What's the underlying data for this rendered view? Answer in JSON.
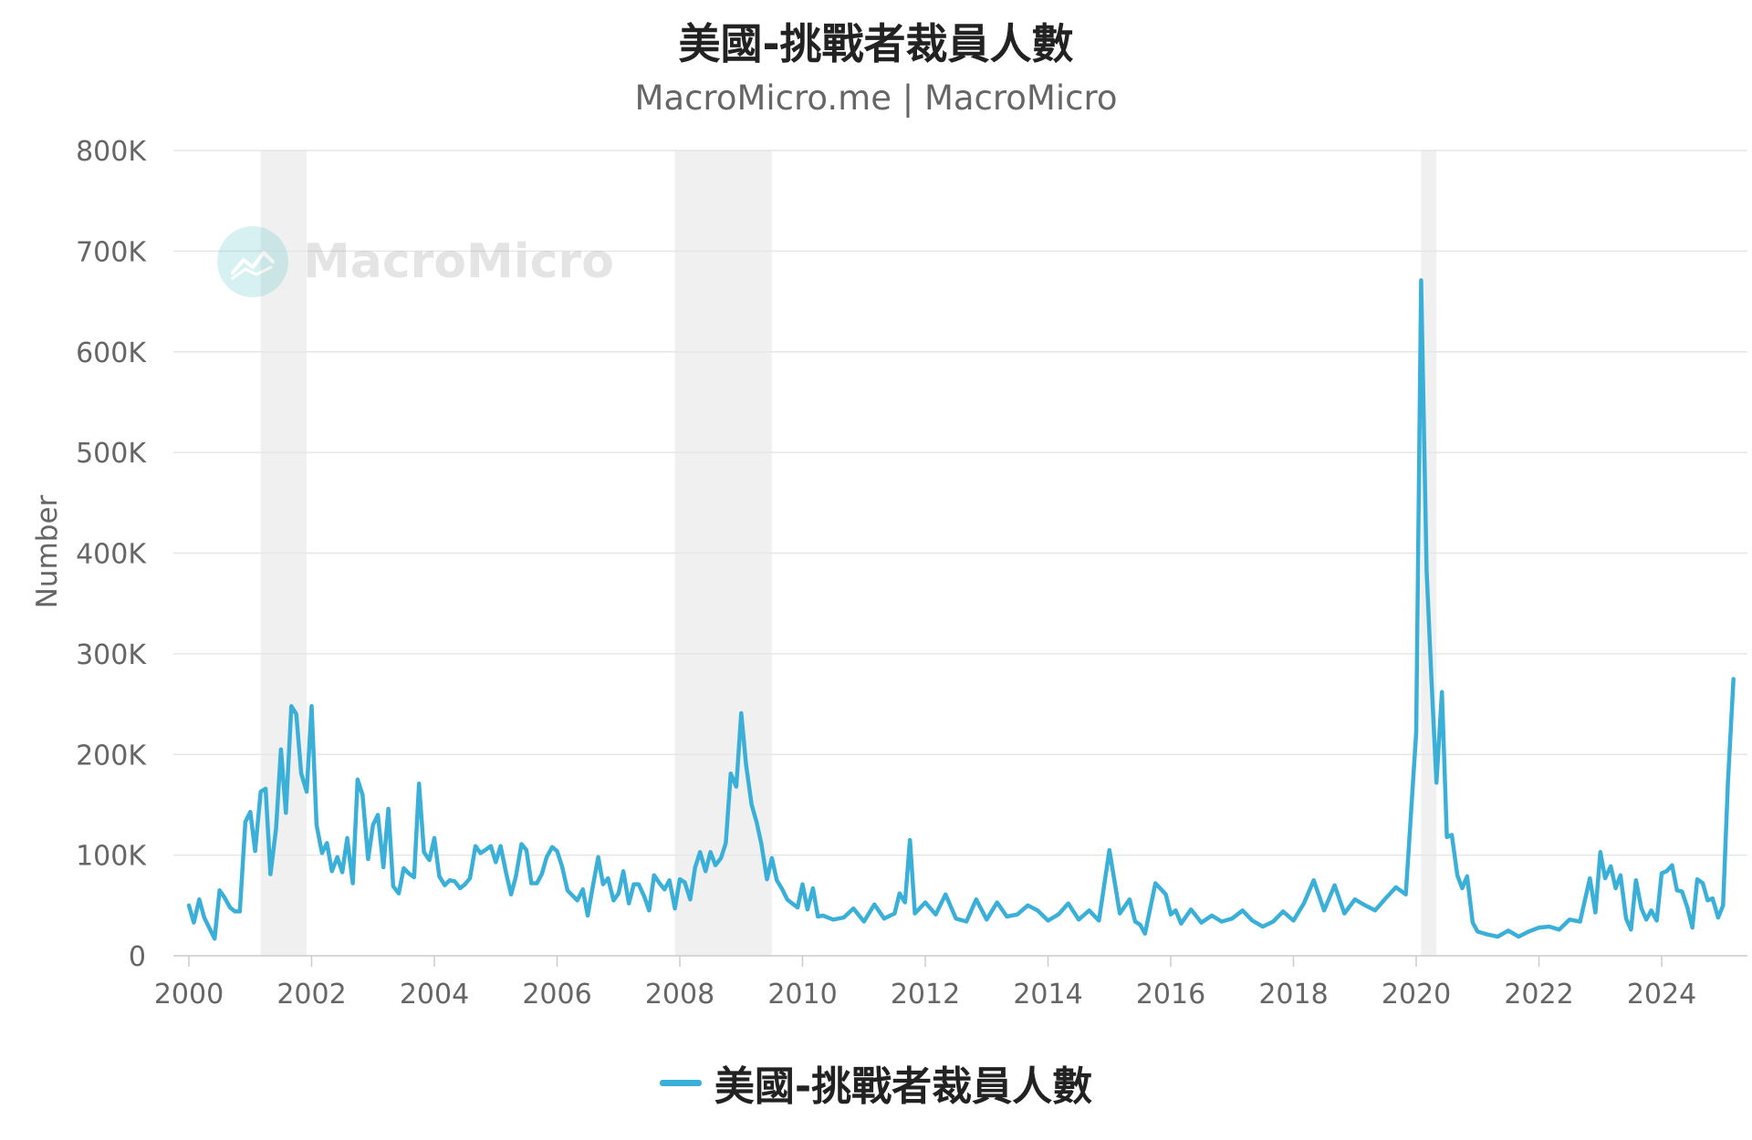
{
  "chart_data": {
    "type": "line",
    "title": "美國-挑戰者裁員人數",
    "subtitle": "MacroMicro.me | MacroMicro",
    "ylabel": "Number",
    "xlabel": "",
    "ylim": [
      0,
      800000
    ],
    "yticks": [
      0,
      100000,
      200000,
      300000,
      400000,
      500000,
      600000,
      700000,
      800000
    ],
    "ytick_labels": [
      "0",
      "100K",
      "200K",
      "300K",
      "400K",
      "500K",
      "600K",
      "700K",
      "800K"
    ],
    "xlim": [
      2000,
      2025.25
    ],
    "xticks": [
      2000,
      2002,
      2004,
      2006,
      2008,
      2010,
      2012,
      2014,
      2016,
      2018,
      2020,
      2022,
      2024
    ],
    "xtick_labels": [
      "2000",
      "2002",
      "2004",
      "2006",
      "2008",
      "2010",
      "2012",
      "2014",
      "2016",
      "2018",
      "2020",
      "2022",
      "2024"
    ],
    "grid": "horizontal",
    "legend": "bottom-center",
    "shaded_periods": [
      {
        "start": 2001.17,
        "end": 2001.92
      },
      {
        "start": 2007.92,
        "end": 2009.5
      },
      {
        "start": 2020.08,
        "end": 2020.33
      }
    ],
    "series": [
      {
        "name": "美國-挑戰者裁員人數",
        "color": "#3ab0d8",
        "x": [
          2000.0,
          2000.08,
          2000.17,
          2000.25,
          2000.33,
          2000.42,
          2000.5,
          2000.58,
          2000.67,
          2000.75,
          2000.83,
          2000.92,
          2001.0,
          2001.08,
          2001.17,
          2001.25,
          2001.33,
          2001.42,
          2001.5,
          2001.58,
          2001.67,
          2001.75,
          2001.83,
          2001.92,
          2002.0,
          2002.08,
          2002.17,
          2002.25,
          2002.33,
          2002.42,
          2002.5,
          2002.58,
          2002.67,
          2002.75,
          2002.83,
          2002.92,
          2003.0,
          2003.08,
          2003.17,
          2003.25,
          2003.33,
          2003.42,
          2003.5,
          2003.58,
          2003.67,
          2003.75,
          2003.83,
          2003.92,
          2004.0,
          2004.08,
          2004.17,
          2004.25,
          2004.33,
          2004.42,
          2004.5,
          2004.58,
          2004.67,
          2004.75,
          2004.83,
          2004.92,
          2005.0,
          2005.08,
          2005.17,
          2005.25,
          2005.33,
          2005.42,
          2005.5,
          2005.58,
          2005.67,
          2005.75,
          2005.83,
          2005.92,
          2006.0,
          2006.08,
          2006.17,
          2006.25,
          2006.33,
          2006.42,
          2006.5,
          2006.58,
          2006.67,
          2006.75,
          2006.83,
          2006.92,
          2007.0,
          2007.08,
          2007.17,
          2007.25,
          2007.33,
          2007.42,
          2007.5,
          2007.58,
          2007.67,
          2007.75,
          2007.83,
          2007.92,
          2008.0,
          2008.08,
          2008.17,
          2008.25,
          2008.33,
          2008.42,
          2008.5,
          2008.58,
          2008.67,
          2008.75,
          2008.83,
          2008.92,
          2009.0,
          2009.08,
          2009.17,
          2009.25,
          2009.33,
          2009.42,
          2009.5,
          2009.58,
          2009.67,
          2009.75,
          2009.83,
          2009.92,
          2010.0,
          2010.08,
          2010.17,
          2010.25,
          2010.33,
          2010.5,
          2010.67,
          2010.83,
          2011.0,
          2011.17,
          2011.33,
          2011.5,
          2011.58,
          2011.67,
          2011.75,
          2011.83,
          2012.0,
          2012.17,
          2012.33,
          2012.5,
          2012.67,
          2012.83,
          2013.0,
          2013.17,
          2013.33,
          2013.5,
          2013.67,
          2013.83,
          2014.0,
          2014.17,
          2014.33,
          2014.5,
          2014.67,
          2014.83,
          2015.0,
          2015.17,
          2015.33,
          2015.42,
          2015.5,
          2015.58,
          2015.75,
          2015.92,
          2016.0,
          2016.08,
          2016.17,
          2016.33,
          2016.5,
          2016.67,
          2016.83,
          2017.0,
          2017.17,
          2017.33,
          2017.5,
          2017.67,
          2017.83,
          2018.0,
          2018.17,
          2018.33,
          2018.5,
          2018.67,
          2018.83,
          2019.0,
          2019.17,
          2019.33,
          2019.5,
          2019.67,
          2019.83,
          2020.0,
          2020.08,
          2020.17,
          2020.25,
          2020.33,
          2020.42,
          2020.5,
          2020.58,
          2020.67,
          2020.75,
          2020.83,
          2020.92,
          2021.0,
          2021.17,
          2021.33,
          2021.5,
          2021.67,
          2021.83,
          2022.0,
          2022.17,
          2022.33,
          2022.5,
          2022.67,
          2022.83,
          2022.92,
          2023.0,
          2023.08,
          2023.17,
          2023.25,
          2023.33,
          2023.42,
          2023.5,
          2023.58,
          2023.67,
          2023.75,
          2023.83,
          2023.92,
          2024.0,
          2024.08,
          2024.17,
          2024.25,
          2024.33,
          2024.42,
          2024.5,
          2024.58,
          2024.67,
          2024.75,
          2024.83,
          2024.92,
          2025.0,
          2025.08,
          2025.17
        ],
        "values": [
          50000,
          33000,
          56000,
          38000,
          28000,
          17000,
          65000,
          58000,
          48000,
          44000,
          44000,
          133000,
          143000,
          104000,
          163000,
          166000,
          81000,
          126000,
          205000,
          142000,
          248000,
          240000,
          181000,
          163000,
          248000,
          130000,
          102000,
          112000,
          84000,
          98000,
          83000,
          117000,
          72000,
          175000,
          160000,
          96000,
          130000,
          140000,
          88000,
          146000,
          69000,
          62000,
          87000,
          82000,
          78000,
          171000,
          103000,
          95000,
          117000,
          79000,
          70000,
          75000,
          74000,
          67000,
          71000,
          77000,
          109000,
          102000,
          105000,
          109000,
          93000,
          109000,
          82000,
          61000,
          79000,
          111000,
          105000,
          72000,
          72000,
          81000,
          98000,
          108000,
          104000,
          89000,
          65000,
          60000,
          55000,
          66000,
          40000,
          68000,
          98000,
          71000,
          77000,
          55000,
          62000,
          84000,
          52000,
          71000,
          71000,
          59000,
          45000,
          80000,
          72000,
          66000,
          75000,
          47000,
          76000,
          73000,
          56000,
          88000,
          103000,
          84000,
          103000,
          90000,
          97000,
          112000,
          181000,
          168000,
          241000,
          190000,
          150000,
          133000,
          111000,
          76000,
          97000,
          75000,
          66000,
          56000,
          52000,
          48000,
          71000,
          46000,
          67000,
          39000,
          40000,
          36000,
          38000,
          47000,
          34000,
          51000,
          37000,
          42000,
          62000,
          53000,
          115000,
          42000,
          53000,
          41000,
          61000,
          37000,
          34000,
          56000,
          36000,
          53000,
          39000,
          41000,
          50000,
          45000,
          35000,
          41000,
          52000,
          36000,
          45000,
          35000,
          105000,
          42000,
          56000,
          34000,
          31000,
          22000,
          72000,
          61000,
          41000,
          45000,
          32000,
          46000,
          33000,
          40000,
          34000,
          37000,
          45000,
          35000,
          29000,
          34000,
          44000,
          35000,
          52000,
          75000,
          45000,
          70000,
          42000,
          56000,
          50000,
          45000,
          57000,
          68000,
          61000,
          222000,
          671000,
          383000,
          273000,
          172000,
          262000,
          118000,
          120000,
          80000,
          67000,
          79000,
          33000,
          24000,
          21000,
          19000,
          25000,
          19000,
          24000,
          28000,
          29000,
          26000,
          36000,
          34000,
          77000,
          43000,
          103000,
          77000,
          89000,
          67000,
          80000,
          37000,
          26000,
          75000,
          47000,
          36000,
          45000,
          35000,
          82000,
          84000,
          90000,
          65000,
          64000,
          48000,
          28000,
          76000,
          72000,
          55000,
          57000,
          38000,
          50000,
          172000,
          275000
        ]
      }
    ]
  },
  "watermark": {
    "text": "MacroMicro"
  },
  "legend": {
    "label": "美國-挑戰者裁員人數",
    "color": "#3ab0d8"
  }
}
